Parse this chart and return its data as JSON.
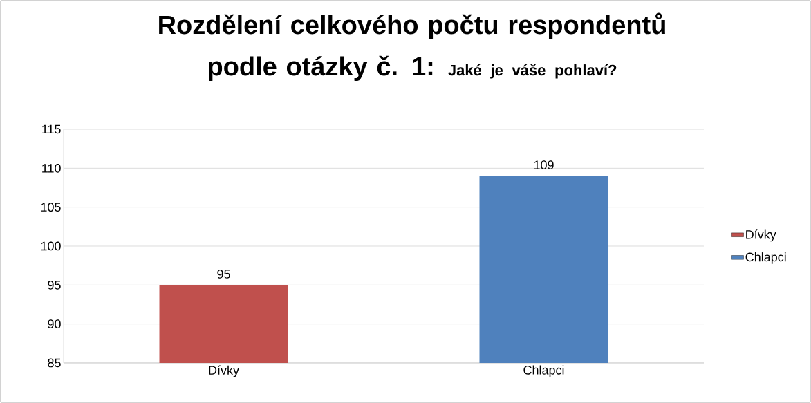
{
  "chart_data": {
    "type": "bar",
    "title": "Rozdělení celkového počtu respondentů podle otázky č. 1:",
    "subtitle": "Jaké je váše pohlaví?",
    "categories": [
      "Dívky",
      "Chlapci"
    ],
    "series": [
      {
        "name": "Dívky",
        "color": "#c0504d",
        "values": [
          95,
          null
        ]
      },
      {
        "name": "Chlapci",
        "color": "#4f81bd",
        "values": [
          null,
          109
        ]
      }
    ],
    "ylim": [
      85,
      115
    ],
    "yticks": [
      85,
      90,
      95,
      100,
      105,
      110,
      115
    ],
    "grid": "y",
    "data_labels": true,
    "legend": "right"
  }
}
